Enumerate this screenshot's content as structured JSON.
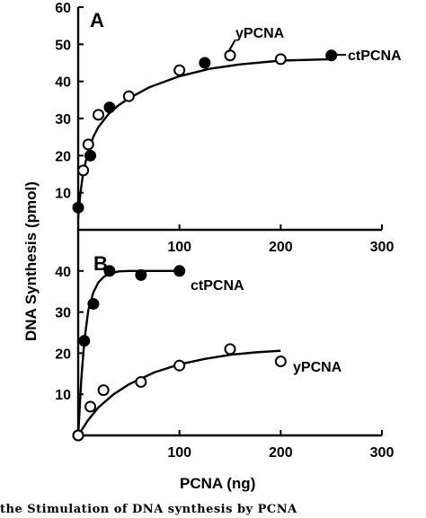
{
  "chart_data": [
    {
      "type": "scatter",
      "panel_label": "A",
      "xlim": [
        0,
        300
      ],
      "ylim": [
        0,
        60
      ],
      "x_ticks": [
        100,
        200,
        300
      ],
      "y_ticks": [
        10,
        20,
        30,
        40,
        50,
        60
      ],
      "series": [
        {
          "name": "ctPCNA",
          "marker": "filled",
          "x": [
            0,
            12,
            31,
            125,
            250
          ],
          "y": [
            6,
            20,
            33,
            45,
            47
          ]
        },
        {
          "name": "yPCNA",
          "marker": "open",
          "x": [
            5,
            10,
            20,
            50,
            100,
            150,
            200
          ],
          "y": [
            16,
            23,
            31,
            36,
            43,
            47,
            46
          ]
        }
      ],
      "fit_curves": [
        {
          "x": [
            0,
            2,
            5,
            10,
            15,
            20,
            30,
            40,
            50,
            70,
            100,
            130,
            160,
            200,
            250
          ],
          "y": [
            3.2,
            9.5,
            15.5,
            21.4,
            25.1,
            27.7,
            31.2,
            33.6,
            35.4,
            38.4,
            41.4,
            43.4,
            44.6,
            45.6,
            46.0
          ]
        }
      ]
    },
    {
      "type": "scatter",
      "panel_label": "B",
      "xlim": [
        0,
        300
      ],
      "ylim": [
        0,
        50
      ],
      "x_ticks": [
        100,
        200,
        300
      ],
      "y_ticks": [
        10,
        20,
        30,
        40
      ],
      "series": [
        {
          "name": "ctPCNA",
          "marker": "filled",
          "x": [
            0,
            6,
            15,
            31,
            62,
            100
          ],
          "y": [
            0,
            23,
            32,
            40,
            39,
            40
          ]
        },
        {
          "name": "yPCNA",
          "marker": "open",
          "x": [
            0,
            12,
            25,
            62,
            100,
            150,
            200
          ],
          "y": [
            0,
            7,
            11,
            13,
            17,
            21,
            18
          ]
        }
      ],
      "fit_curves": [
        {
          "x": [
            0,
            3,
            6,
            10,
            15,
            20,
            25,
            30,
            40,
            50,
            60,
            80,
            100
          ],
          "y": [
            0,
            13.5,
            23.0,
            30.5,
            34.8,
            37.2,
            38.5,
            39.3,
            39.9,
            40.0,
            40.0,
            40.0,
            40.0
          ]
        },
        {
          "x": [
            0,
            10,
            20,
            35,
            50,
            75,
            100,
            125,
            150,
            175,
            200
          ],
          "y": [
            0,
            3.8,
            6.8,
            10.0,
            12.4,
            15.3,
            17.3,
            18.6,
            19.6,
            20.2,
            20.6
          ]
        }
      ]
    }
  ],
  "labels": {
    "panel_a": "A",
    "panel_b": "B",
    "a_ctpcna": "ctPCNA",
    "a_ypcna": "yPCNA",
    "b_ctpcna": "ctPCNA",
    "b_ypcna": "yPCNA",
    "y_axis": "DNA Synthesis (pmol)",
    "x_axis": "PCNA (ng)"
  },
  "caption": "the  Stimulation  of  DNA  synthesis  by  PCNA"
}
